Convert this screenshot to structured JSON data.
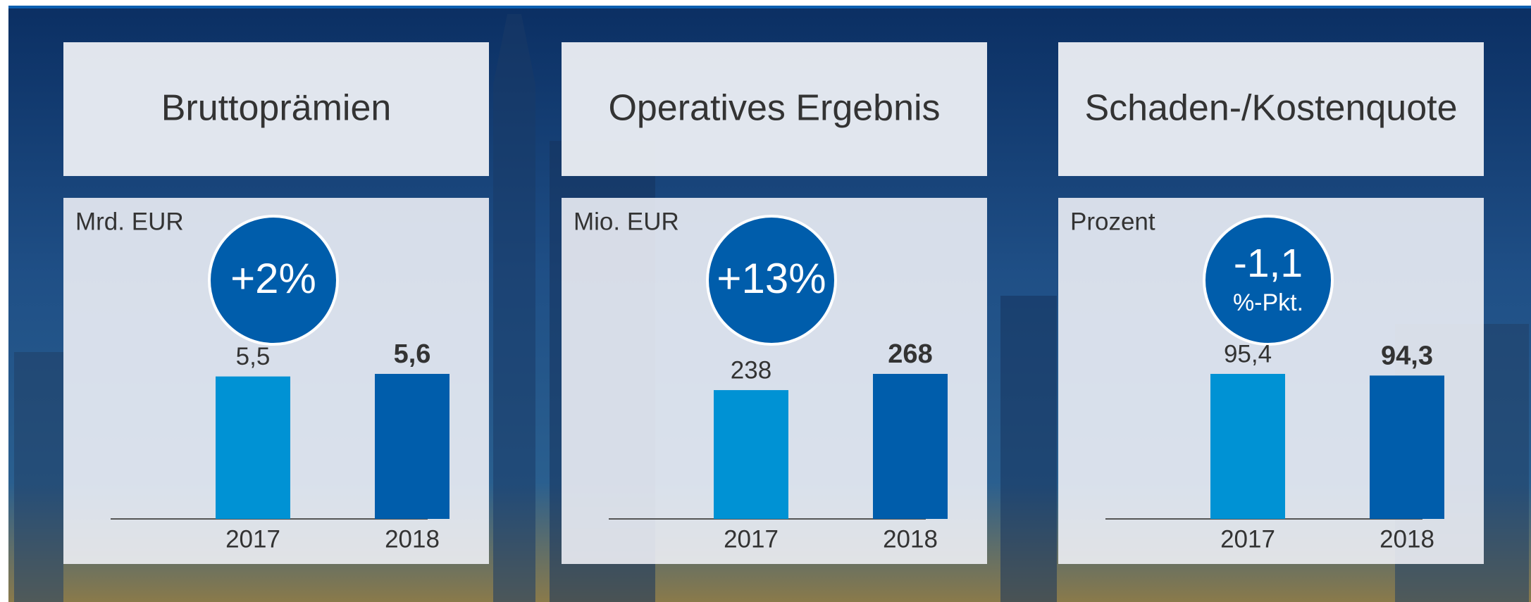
{
  "chart_data": [
    {
      "type": "bar",
      "title": "Bruttoprämien",
      "subtitle": "Mrd. EUR",
      "annotation": [
        "+2%"
      ],
      "categories": [
        "2017",
        "2018"
      ],
      "values": [
        5.5,
        5.6
      ],
      "value_labels": [
        "5,5",
        "5,6"
      ],
      "colors": [
        "#0092d4",
        "#005dab"
      ]
    },
    {
      "type": "bar",
      "title": "Operatives Ergebnis",
      "subtitle": "Mio. EUR",
      "annotation": [
        "+13%"
      ],
      "categories": [
        "2017",
        "2018"
      ],
      "values": [
        238,
        268
      ],
      "value_labels": [
        "238",
        "268"
      ],
      "colors": [
        "#0092d4",
        "#005dab"
      ]
    },
    {
      "type": "bar",
      "title": "Schaden-/Kostenquote",
      "subtitle": "Prozent",
      "annotation": [
        "-1,1",
        "%-Pkt."
      ],
      "categories": [
        "2017",
        "2018"
      ],
      "values": [
        95.4,
        94.3
      ],
      "value_labels": [
        "95,4",
        "94,3"
      ],
      "colors": [
        "#0092d4",
        "#005dab"
      ]
    }
  ]
}
